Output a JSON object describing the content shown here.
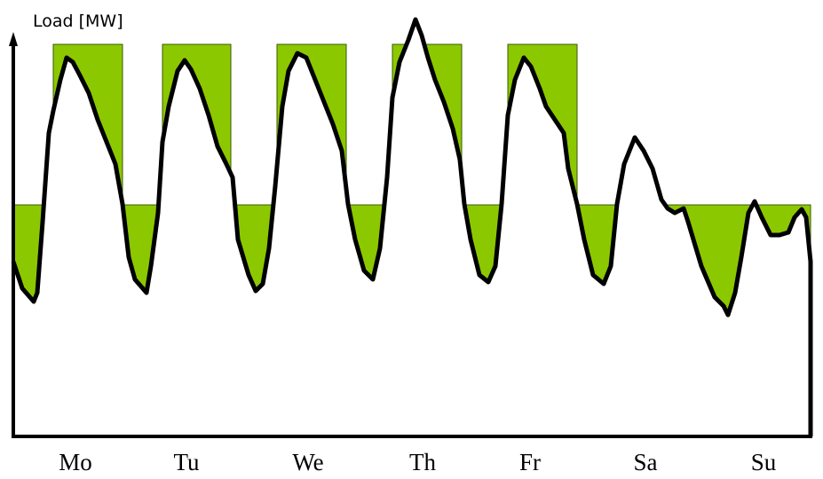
{
  "axis": {
    "y_label": "Load [MW]"
  },
  "days": [
    "Mo",
    "Tu",
    "We",
    "Th",
    "Fr",
    "Sa",
    "Su"
  ]
}
